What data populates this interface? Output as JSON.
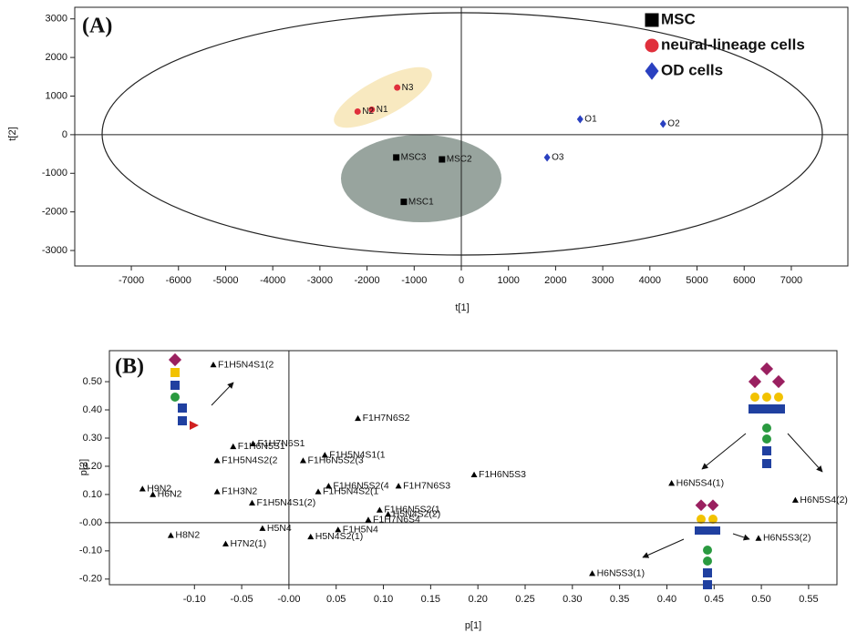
{
  "chart_data": [
    {
      "type": "scatter",
      "label": "(A)",
      "x_label": "t[1]",
      "y_label": "t[2]",
      "xlim": [
        -8200,
        8200
      ],
      "ylim": [
        -3400,
        3300
      ],
      "xticks": [
        -7000,
        -6000,
        -5000,
        -4000,
        -3000,
        -2000,
        -1000,
        0,
        1000,
        2000,
        3000,
        4000,
        5000,
        6000,
        7000
      ],
      "yticks": [
        3000,
        2000,
        1000,
        0,
        -1000,
        -2000,
        -3000
      ],
      "zero_lines": true,
      "legend": "top-right",
      "series": [
        {
          "name": "MSC",
          "color": "#000000",
          "marker": "square",
          "labels": [
            "MSC1",
            "MSC2",
            "MSC3"
          ],
          "x": [
            -1220,
            -410,
            -1380
          ],
          "values": [
            -1740,
            -640,
            -590
          ]
        },
        {
          "name": "neural-lineage cells",
          "color": "#e0303c",
          "marker": "circle",
          "labels": [
            "N1",
            "N2",
            "N3"
          ],
          "x": [
            -1900,
            -2200,
            -1360
          ],
          "values": [
            650,
            600,
            1220
          ]
        },
        {
          "name": "OD cells",
          "color": "#2a40c0",
          "marker": "diamond",
          "labels": [
            "O1",
            "O2",
            "O3"
          ],
          "x": [
            2520,
            4280,
            1820
          ],
          "values": [
            400,
            280,
            -590
          ]
        }
      ]
    },
    {
      "type": "scatter",
      "label": "(B)",
      "x_label": "p[1]",
      "y_label": "p[2]",
      "xlim": [
        -0.19,
        0.58
      ],
      "ylim": [
        -0.22,
        0.61
      ],
      "xticks": [
        {
          "value": -0.1,
          "label": "-0.10"
        },
        {
          "value": -0.05,
          "label": "-0.05"
        },
        {
          "value": 0,
          "label": "-0.00"
        },
        {
          "value": 0.05,
          "label": "0.05"
        },
        {
          "value": 0.1,
          "label": "0.10"
        },
        {
          "value": 0.15,
          "label": "0.15"
        },
        {
          "value": 0.2,
          "label": "0.20"
        },
        {
          "value": 0.25,
          "label": "0.25"
        },
        {
          "value": 0.3,
          "label": "0.30"
        },
        {
          "value": 0.35,
          "label": "0.35"
        },
        {
          "value": 0.4,
          "label": "0.40"
        },
        {
          "value": 0.45,
          "label": "0.45"
        },
        {
          "value": 0.5,
          "label": "0.50"
        },
        {
          "value": 0.55,
          "label": "0.55"
        }
      ],
      "yticks": [
        {
          "value": 0.5,
          "label": "0.50"
        },
        {
          "value": 0.4,
          "label": "0.40"
        },
        {
          "value": 0.3,
          "label": "0.30"
        },
        {
          "value": 0.2,
          "label": "0.20"
        },
        {
          "value": 0.1,
          "label": "0.10"
        },
        {
          "value": 0,
          "label": "-0.00"
        },
        {
          "value": -0.1,
          "label": "-0.10"
        },
        {
          "value": -0.2,
          "label": "-0.20"
        }
      ],
      "zero_lines": true,
      "series": [
        {
          "color": "#000000",
          "marker": "triangle",
          "labels": [
            "F1H5N4S1(2",
            "F1H7N6S2",
            "F1H7N6S1",
            "F1H6N5S1",
            "F1H5N4S2(2",
            "F1H5N4S1(1",
            "F1H6N5S2(3",
            "F1H6N5S3",
            "F1H7N6S3",
            "F1H6N5S2(4",
            "F1H5N4S2(1",
            "H9N2",
            "H6N2",
            "F1H3N2",
            "H6N5S4(1)",
            "H6N5S4(2)",
            "H6N5S3(2)",
            "H6N5S3(1)",
            "H8N2",
            "H7N2(1)",
            "H5N4",
            "F1H7N6S4",
            "F1H5N4",
            "H5N4S2(1)",
            "H5N4S2(2)",
            "F1H6N5S2(1",
            "F1H5N4S1(2)"
          ],
          "x": [
            -0.08,
            0.073,
            -0.038,
            -0.059,
            -0.076,
            0.038,
            0.015,
            0.196,
            0.116,
            0.042,
            0.031,
            -0.155,
            -0.144,
            -0.076,
            0.405,
            0.536,
            0.497,
            0.321,
            -0.125,
            -0.067,
            -0.028,
            0.084,
            0.052,
            0.023,
            0.105,
            0.096,
            -0.039
          ],
          "values": [
            0.56,
            0.37,
            0.28,
            0.27,
            0.22,
            0.24,
            0.22,
            0.17,
            0.13,
            0.13,
            0.11,
            0.12,
            0.1,
            0.11,
            0.14,
            0.08,
            -0.055,
            -0.18,
            -0.045,
            -0.075,
            -0.02,
            0.01,
            -0.025,
            -0.05,
            0.03,
            0.045,
            0.07
          ]
        }
      ]
    }
  ]
}
